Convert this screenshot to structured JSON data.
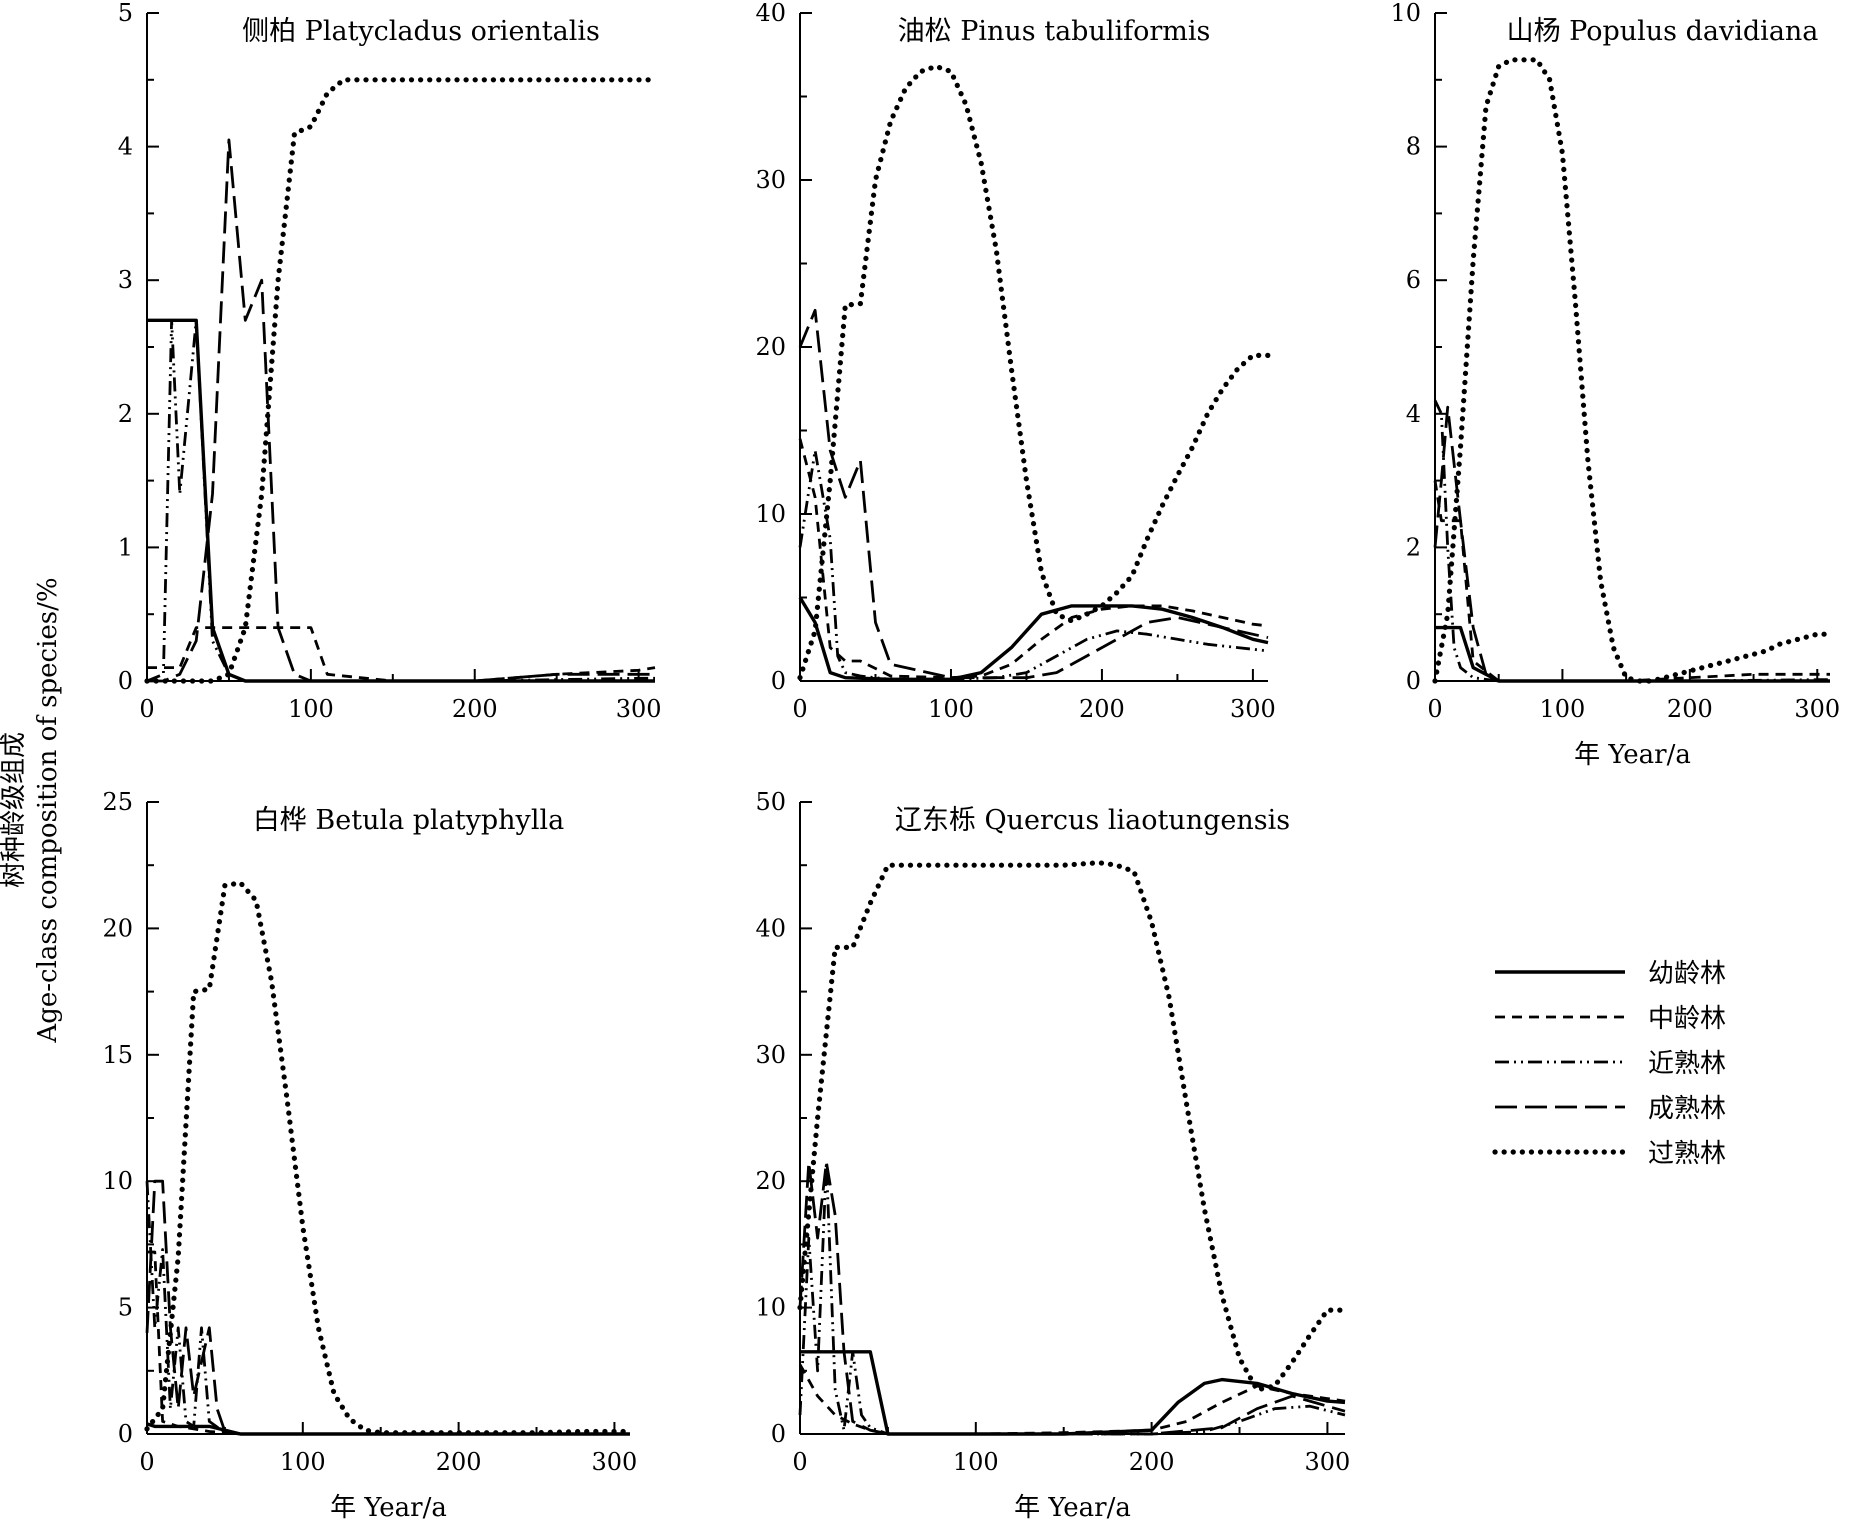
{
  "figure": {
    "y_axis_title_cn": "树种龄级组成",
    "y_axis_title_en": "Age-class composition of species/%",
    "x_axis_title": "年 Year/a"
  },
  "legend": [
    {
      "label": "幼龄林",
      "series_key": "young",
      "dash": "solid"
    },
    {
      "label": "中龄林",
      "series_key": "middle",
      "dash": "dashed"
    },
    {
      "label": "近熟林",
      "series_key": "near_mature",
      "dash": "dash-dot-dot"
    },
    {
      "label": "成熟林",
      "series_key": "mature",
      "dash": "long-dash"
    },
    {
      "label": "过熟林",
      "series_key": "over_mature",
      "dash": "dotted"
    }
  ],
  "chart_data": [
    {
      "type": "line",
      "title": "侧柏  Platycladus orientalis",
      "xlabel": "",
      "ylabel": "",
      "xlim": [
        0,
        310
      ],
      "ylim": [
        0,
        5
      ],
      "xticks": [
        0,
        100,
        200,
        300
      ],
      "yticks": [
        0,
        1,
        2,
        3,
        4,
        5
      ],
      "series": [
        {
          "key": "young",
          "x": [
            0,
            10,
            20,
            30,
            40,
            50,
            60,
            100,
            200,
            300,
            310
          ],
          "y": [
            2.7,
            2.7,
            2.7,
            2.7,
            0.4,
            0.05,
            0.0,
            0.0,
            0.0,
            0.0,
            0.0
          ]
        },
        {
          "key": "middle",
          "x": [
            0,
            10,
            20,
            30,
            40,
            50,
            60,
            70,
            80,
            100,
            110,
            150,
            200,
            250,
            300,
            310
          ],
          "y": [
            0.1,
            0.1,
            0.1,
            0.4,
            0.4,
            0.4,
            0.4,
            0.4,
            0.4,
            0.4,
            0.05,
            0.0,
            0.0,
            0.05,
            0.08,
            0.1
          ]
        },
        {
          "key": "near_mature",
          "x": [
            0,
            10,
            15,
            20,
            30,
            40,
            50,
            60,
            100,
            200,
            300,
            310
          ],
          "y": [
            0.0,
            0.05,
            2.7,
            1.4,
            2.7,
            0.3,
            0.05,
            0.0,
            0.0,
            0.0,
            0.02,
            0.02
          ]
        },
        {
          "key": "mature",
          "x": [
            0,
            10,
            20,
            30,
            40,
            50,
            60,
            70,
            80,
            90,
            100,
            150,
            200,
            250,
            300,
            310
          ],
          "y": [
            0.0,
            0.0,
            0.05,
            0.3,
            1.4,
            4.05,
            2.7,
            3.0,
            0.4,
            0.05,
            0.0,
            0.0,
            0.0,
            0.05,
            0.05,
            0.05
          ]
        },
        {
          "key": "over_mature",
          "x": [
            0,
            10,
            20,
            30,
            40,
            50,
            60,
            70,
            80,
            90,
            100,
            110,
            120,
            150,
            200,
            250,
            300,
            310
          ],
          "y": [
            0.0,
            0.0,
            0.0,
            0.0,
            0.0,
            0.05,
            0.4,
            1.4,
            3.0,
            4.1,
            4.15,
            4.4,
            4.5,
            4.5,
            4.5,
            4.5,
            4.5,
            4.5
          ]
        }
      ]
    },
    {
      "type": "line",
      "title": "油松 Pinus tabuliformis",
      "xlabel": "",
      "ylabel": "",
      "xlim": [
        0,
        310
      ],
      "ylim": [
        0,
        40
      ],
      "xticks": [
        0,
        100,
        200,
        300
      ],
      "yticks": [
        0,
        10,
        20,
        30,
        40
      ],
      "series": [
        {
          "key": "young",
          "x": [
            0,
            10,
            20,
            30,
            60,
            100,
            120,
            140,
            160,
            180,
            200,
            220,
            240,
            260,
            280,
            300,
            310
          ],
          "y": [
            5.0,
            3.5,
            0.5,
            0.2,
            0.1,
            0.1,
            0.5,
            2.0,
            4.0,
            4.5,
            4.5,
            4.5,
            4.3,
            3.8,
            3.2,
            2.5,
            2.3
          ]
        },
        {
          "key": "middle",
          "x": [
            0,
            10,
            20,
            30,
            40,
            60,
            100,
            120,
            140,
            160,
            180,
            200,
            220,
            240,
            260,
            280,
            300,
            310
          ],
          "y": [
            14.5,
            11.0,
            2.0,
            1.2,
            1.2,
            0.3,
            0.2,
            0.3,
            1.0,
            2.5,
            3.8,
            4.3,
            4.5,
            4.5,
            4.2,
            3.8,
            3.4,
            3.3
          ]
        },
        {
          "key": "near_mature",
          "x": [
            0,
            10,
            20,
            25,
            30,
            40,
            50,
            60,
            100,
            130,
            150,
            170,
            190,
            210,
            230,
            250,
            270,
            290,
            310
          ],
          "y": [
            8.0,
            13.8,
            8.5,
            1.5,
            0.5,
            0.3,
            0.2,
            0.1,
            0.1,
            0.2,
            0.5,
            1.5,
            2.5,
            3.0,
            2.8,
            2.5,
            2.2,
            2.0,
            1.8
          ]
        },
        {
          "key": "mature",
          "x": [
            0,
            10,
            20,
            30,
            40,
            50,
            60,
            100,
            150,
            170,
            190,
            210,
            230,
            250,
            270,
            290,
            310
          ],
          "y": [
            20.0,
            22.2,
            13.8,
            11.0,
            13.2,
            3.5,
            1.0,
            0.2,
            0.2,
            0.5,
            1.5,
            2.5,
            3.5,
            3.8,
            3.4,
            3.0,
            2.6
          ]
        },
        {
          "key": "over_mature",
          "x": [
            0,
            10,
            20,
            30,
            40,
            50,
            60,
            70,
            80,
            90,
            100,
            110,
            120,
            130,
            140,
            150,
            160,
            170,
            180,
            190,
            200,
            210,
            220,
            230,
            240,
            250,
            260,
            270,
            280,
            290,
            300,
            310
          ],
          "y": [
            0.2,
            3.0,
            12.0,
            22.5,
            22.6,
            30.0,
            33.5,
            35.5,
            36.5,
            36.8,
            36.5,
            34.5,
            31.0,
            25.8,
            18.7,
            12.0,
            6.5,
            4.0,
            3.6,
            4.0,
            4.5,
            5.3,
            6.3,
            8.5,
            10.5,
            12.3,
            14.0,
            16.0,
            17.5,
            18.7,
            19.5,
            19.5
          ]
        }
      ]
    },
    {
      "type": "line",
      "title": "山杨 Populus davidiana",
      "xlabel": "年 Year/a",
      "ylabel": "",
      "xlim": [
        0,
        310
      ],
      "ylim": [
        0,
        10
      ],
      "xticks": [
        0,
        100,
        200,
        300
      ],
      "yticks": [
        0,
        2,
        4,
        6,
        8,
        10
      ],
      "series": [
        {
          "key": "young",
          "x": [
            0,
            5,
            10,
            20,
            30,
            50,
            100,
            200,
            300,
            310
          ],
          "y": [
            0.8,
            0.8,
            0.8,
            0.8,
            0.2,
            0.0,
            0.0,
            0.0,
            0.0,
            0.0
          ]
        },
        {
          "key": "middle",
          "x": [
            0,
            5,
            10,
            20,
            30,
            50,
            100,
            150,
            200,
            250,
            300,
            310
          ],
          "y": [
            3.0,
            2.4,
            2.4,
            2.4,
            0.3,
            0.0,
            0.0,
            0.0,
            0.05,
            0.1,
            0.1,
            0.1
          ]
        },
        {
          "key": "near_mature",
          "x": [
            0,
            5,
            10,
            15,
            20,
            30,
            50,
            100,
            200,
            300,
            310
          ],
          "y": [
            4.2,
            4.0,
            2.0,
            0.5,
            0.2,
            0.05,
            0.0,
            0.0,
            0.0,
            0.02,
            0.02
          ]
        },
        {
          "key": "mature",
          "x": [
            0,
            5,
            10,
            20,
            30,
            40,
            50,
            100,
            200,
            300,
            310
          ],
          "y": [
            2.0,
            3.0,
            4.1,
            2.4,
            0.8,
            0.1,
            0.0,
            0.0,
            0.0,
            0.0,
            0.0
          ]
        },
        {
          "key": "over_mature",
          "x": [
            0,
            10,
            20,
            30,
            40,
            50,
            60,
            70,
            80,
            90,
            100,
            110,
            120,
            130,
            140,
            150,
            160,
            170,
            180,
            190,
            200,
            210,
            220,
            230,
            240,
            250,
            260,
            270,
            280,
            290,
            300,
            310
          ],
          "y": [
            0.0,
            1.0,
            3.5,
            6.3,
            8.6,
            9.2,
            9.3,
            9.3,
            9.3,
            9.0,
            7.9,
            5.7,
            3.3,
            1.5,
            0.5,
            0.05,
            0.0,
            0.0,
            0.05,
            0.1,
            0.15,
            0.2,
            0.25,
            0.3,
            0.35,
            0.4,
            0.45,
            0.55,
            0.6,
            0.65,
            0.7,
            0.7
          ]
        }
      ]
    },
    {
      "type": "line",
      "title": "白桦 Betula platyphylla",
      "xlabel": "年 Year/a",
      "ylabel": "",
      "xlim": [
        0,
        310
      ],
      "ylim": [
        0,
        25
      ],
      "xticks": [
        0,
        100,
        200,
        300
      ],
      "yticks": [
        0,
        5,
        10,
        15,
        20,
        25
      ],
      "series": [
        {
          "key": "young",
          "x": [
            0,
            5,
            10,
            20,
            30,
            40,
            60,
            100,
            200,
            300,
            310
          ],
          "y": [
            0.4,
            0.3,
            0.3,
            0.3,
            0.3,
            0.3,
            0.0,
            0.0,
            0.0,
            0.0,
            0.0
          ]
        },
        {
          "key": "middle",
          "x": [
            0,
            5,
            10,
            20,
            30,
            40,
            50,
            60,
            100,
            200,
            300,
            310
          ],
          "y": [
            7.2,
            7.2,
            0.5,
            0.3,
            0.2,
            0.1,
            0.05,
            0.0,
            0.0,
            0.0,
            0.0,
            0.0
          ]
        },
        {
          "key": "near_mature",
          "x": [
            0,
            5,
            10,
            15,
            20,
            25,
            30,
            35,
            40,
            50,
            60,
            100,
            200,
            300,
            310
          ],
          "y": [
            10.0,
            4.2,
            7.3,
            1.0,
            4.2,
            0.5,
            0.3,
            4.2,
            0.5,
            0.05,
            0.0,
            0.0,
            0.0,
            0.0,
            0.0
          ]
        },
        {
          "key": "mature",
          "x": [
            0,
            5,
            10,
            15,
            20,
            25,
            30,
            40,
            45,
            50,
            60,
            100,
            200,
            300,
            310
          ],
          "y": [
            4.0,
            10.0,
            10.0,
            4.2,
            1.0,
            4.2,
            1.5,
            4.2,
            1.0,
            0.1,
            0.0,
            0.0,
            0.0,
            0.0,
            0.0
          ]
        },
        {
          "key": "over_mature",
          "x": [
            0,
            10,
            20,
            30,
            40,
            50,
            60,
            70,
            80,
            90,
            100,
            110,
            120,
            130,
            140,
            150,
            200,
            250,
            280,
            300,
            310
          ],
          "y": [
            0.2,
            1.0,
            7.0,
            17.5,
            17.6,
            21.7,
            21.8,
            21.1,
            17.9,
            13.2,
            8.2,
            4.2,
            1.6,
            0.6,
            0.15,
            0.05,
            0.05,
            0.05,
            0.1,
            0.1,
            0.1
          ]
        }
      ]
    },
    {
      "type": "line",
      "title": "辽东栎 Quercus liaotungensis",
      "xlabel": "年 Year/a",
      "ylabel": "",
      "xlim": [
        0,
        310
      ],
      "ylim": [
        0,
        50
      ],
      "xticks": [
        0,
        100,
        200,
        300
      ],
      "yticks": [
        0,
        10,
        20,
        30,
        40,
        50
      ],
      "series": [
        {
          "key": "young",
          "x": [
            0,
            10,
            20,
            30,
            40,
            50,
            100,
            150,
            200,
            215,
            230,
            240,
            260,
            280,
            300,
            310
          ],
          "y": [
            6.5,
            6.5,
            6.5,
            6.5,
            6.5,
            0.0,
            0.0,
            0.0,
            0.3,
            2.5,
            4.0,
            4.3,
            4.0,
            3.2,
            2.6,
            2.5
          ]
        },
        {
          "key": "middle",
          "x": [
            0,
            10,
            20,
            30,
            40,
            50,
            100,
            150,
            200,
            220,
            240,
            260,
            280,
            300,
            310
          ],
          "y": [
            5.5,
            3.0,
            1.5,
            0.8,
            0.3,
            0.0,
            0.0,
            0.1,
            0.3,
            1.0,
            2.5,
            3.8,
            3.2,
            2.8,
            2.6
          ]
        },
        {
          "key": "near_mature",
          "x": [
            0,
            5,
            10,
            15,
            20,
            25,
            30,
            35,
            40,
            50,
            100,
            200,
            230,
            250,
            270,
            290,
            310
          ],
          "y": [
            1.5,
            15.5,
            5.0,
            21.5,
            3.5,
            0.3,
            6.5,
            1.5,
            0.5,
            0.0,
            0.0,
            0.0,
            0.2,
            1.0,
            2.0,
            2.2,
            1.5
          ]
        },
        {
          "key": "mature",
          "x": [
            0,
            5,
            10,
            15,
            20,
            25,
            30,
            40,
            50,
            100,
            200,
            240,
            260,
            280,
            300,
            310
          ],
          "y": [
            10.0,
            21.5,
            15.5,
            21.5,
            17.3,
            6.5,
            1.0,
            0.3,
            0.0,
            0.0,
            0.0,
            0.5,
            2.0,
            3.0,
            2.2,
            1.8
          ]
        },
        {
          "key": "over_mature",
          "x": [
            0,
            10,
            20,
            30,
            40,
            50,
            100,
            150,
            170,
            180,
            190,
            200,
            210,
            220,
            230,
            240,
            250,
            260,
            270,
            280,
            290,
            300,
            310
          ],
          "y": [
            10.0,
            25.0,
            38.5,
            38.5,
            42.0,
            45.0,
            45.0,
            45.0,
            45.2,
            45.0,
            44.5,
            40.5,
            34.5,
            26.0,
            17.8,
            11.0,
            6.0,
            3.5,
            3.8,
            5.7,
            7.8,
            9.8,
            9.8
          ]
        }
      ]
    }
  ]
}
